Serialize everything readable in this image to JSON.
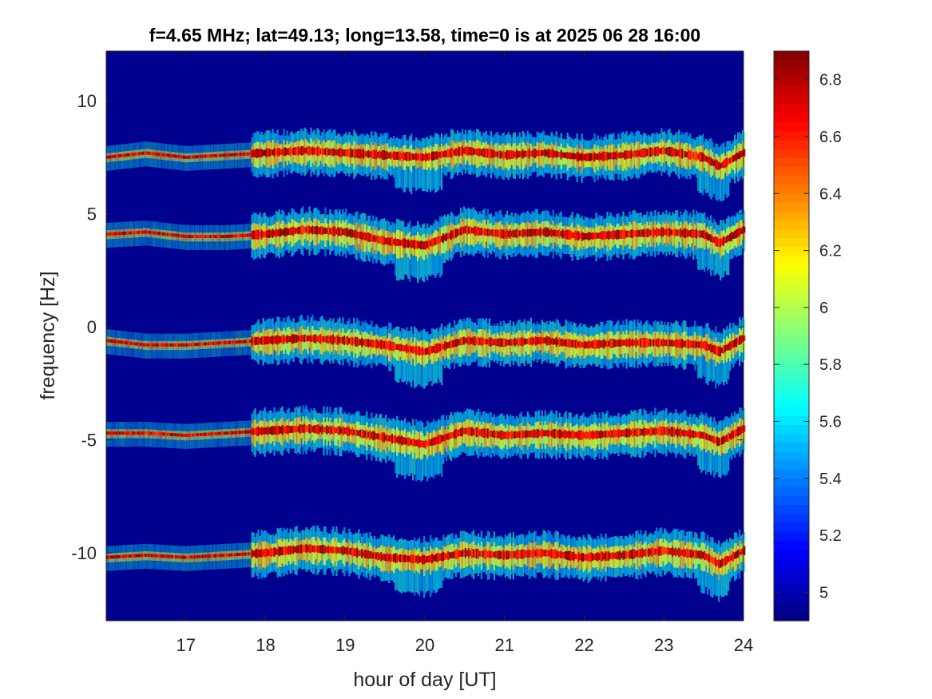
{
  "chart_data": {
    "type": "heatmap",
    "title": "f=4.65 MHz;  lat=49.13; long=13.58, time=0 is at 2025 06 28 16:00",
    "xlabel": "hour of day [UT]",
    "ylabel": "frequency [Hz]",
    "xlim": [
      16,
      24
    ],
    "ylim": [
      -13.0,
      12.2
    ],
    "x_ticks": [
      17,
      18,
      19,
      20,
      21,
      22,
      23,
      24
    ],
    "x_tick_labels": [
      "17",
      "18",
      "19",
      "20",
      "21",
      "22",
      "23",
      "24"
    ],
    "y_ticks": [
      10,
      5,
      0,
      -5,
      -10
    ],
    "y_tick_labels": [
      "10",
      "5",
      "0",
      "-5",
      "-10"
    ],
    "colorbar": {
      "colormap": "jet",
      "clim": [
        4.9,
        6.9
      ],
      "ticks": [
        6.8,
        6.6,
        6.4,
        6.2,
        6,
        5.8,
        5.6,
        5.4,
        5.2,
        5
      ],
      "tick_labels": [
        "6.8",
        "6.6",
        "6.4",
        "6.2",
        "6",
        "5.8",
        "5.6",
        "5.4",
        "5.2",
        "5"
      ]
    },
    "background_color": "#00008f",
    "frame_color": "#262626",
    "series": [
      {
        "center_frequency_hz": 7.6,
        "x": [
          16.0,
          16.5,
          17.0,
          17.5,
          18.0,
          18.5,
          19.0,
          19.5,
          20.0,
          20.5,
          21.0,
          21.5,
          22.0,
          22.5,
          23.0,
          23.5,
          23.7,
          24.0
        ],
        "y": [
          7.5,
          7.7,
          7.5,
          7.6,
          7.7,
          7.8,
          7.7,
          7.6,
          7.5,
          7.8,
          7.6,
          7.7,
          7.5,
          7.6,
          7.8,
          7.5,
          7.1,
          7.7
        ]
      },
      {
        "center_frequency_hz": 4.1,
        "x": [
          16.0,
          16.5,
          17.0,
          17.5,
          18.0,
          18.5,
          19.0,
          19.5,
          20.0,
          20.5,
          21.0,
          21.5,
          22.0,
          22.5,
          23.0,
          23.5,
          23.7,
          24.0
        ],
        "y": [
          4.1,
          4.2,
          4.0,
          4.0,
          4.1,
          4.3,
          4.2,
          3.8,
          3.6,
          4.3,
          4.1,
          4.2,
          4.0,
          4.1,
          4.2,
          4.1,
          3.7,
          4.3
        ]
      },
      {
        "center_frequency_hz": -0.7,
        "x": [
          16.0,
          16.5,
          17.0,
          17.5,
          18.0,
          18.5,
          19.0,
          19.5,
          20.0,
          20.5,
          21.0,
          21.5,
          22.0,
          22.5,
          23.0,
          23.5,
          23.7,
          24.0
        ],
        "y": [
          -0.6,
          -0.8,
          -0.8,
          -0.7,
          -0.6,
          -0.5,
          -0.6,
          -0.8,
          -1.1,
          -0.6,
          -0.7,
          -0.6,
          -0.8,
          -0.7,
          -0.7,
          -0.8,
          -1.1,
          -0.5
        ]
      },
      {
        "center_frequency_hz": -4.7,
        "x": [
          16.0,
          16.5,
          17.0,
          17.5,
          18.0,
          18.5,
          19.0,
          19.5,
          20.0,
          20.5,
          21.0,
          21.5,
          22.0,
          22.5,
          23.0,
          23.5,
          23.7,
          24.0
        ],
        "y": [
          -4.7,
          -4.7,
          -4.8,
          -4.7,
          -4.6,
          -4.5,
          -4.6,
          -4.9,
          -5.2,
          -4.6,
          -4.8,
          -4.7,
          -4.8,
          -4.7,
          -4.6,
          -4.8,
          -5.1,
          -4.5
        ]
      },
      {
        "center_frequency_hz": -10.1,
        "x": [
          16.0,
          16.5,
          17.0,
          17.5,
          18.0,
          18.5,
          19.0,
          19.5,
          20.0,
          20.5,
          21.0,
          21.5,
          22.0,
          22.5,
          23.0,
          23.5,
          23.7,
          24.0
        ],
        "y": [
          -10.2,
          -10.1,
          -10.2,
          -10.1,
          -10.0,
          -9.8,
          -9.9,
          -10.2,
          -10.3,
          -10.0,
          -10.1,
          -10.0,
          -10.2,
          -10.1,
          -9.9,
          -10.1,
          -10.5,
          -9.9
        ]
      }
    ]
  }
}
